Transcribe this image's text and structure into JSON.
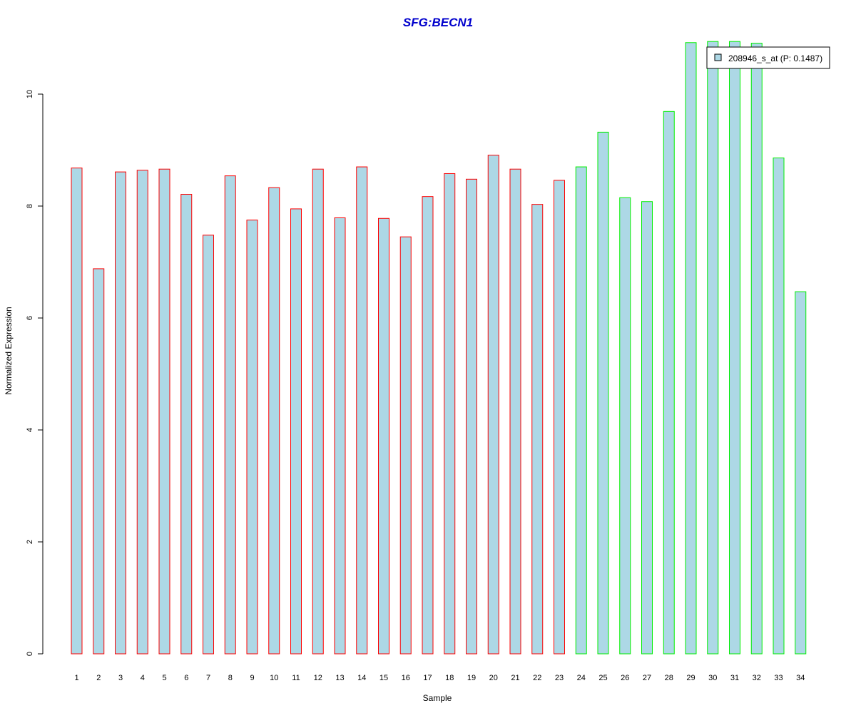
{
  "chart_data": {
    "type": "bar",
    "title": "SFG:BECN1",
    "xlabel": "Sample",
    "ylabel": "Normalized Expression",
    "ylim": [
      0,
      11
    ],
    "yticks": [
      "0",
      "2",
      "4",
      "6",
      "8",
      "10"
    ],
    "categories": [
      "1",
      "2",
      "3",
      "4",
      "5",
      "6",
      "7",
      "8",
      "9",
      "10",
      "11",
      "12",
      "13",
      "14",
      "15",
      "16",
      "17",
      "18",
      "19",
      "20",
      "21",
      "22",
      "23",
      "24",
      "25",
      "26",
      "27",
      "28",
      "29",
      "30",
      "31",
      "32",
      "33",
      "34"
    ],
    "series": [
      {
        "name": "208946_s_at (P: 0.1487)",
        "values": [
          8.68,
          6.88,
          8.61,
          8.64,
          8.66,
          8.21,
          7.48,
          8.54,
          7.75,
          8.33,
          7.95,
          8.66,
          7.79,
          8.7,
          7.78,
          7.45,
          8.17,
          8.58,
          8.48,
          8.91,
          8.66,
          8.03,
          8.46,
          8.7,
          9.32,
          8.15,
          8.08,
          9.69,
          10.92,
          10.94,
          10.94,
          10.91,
          8.86,
          6.47
        ]
      }
    ],
    "group_colors": [
      "#ff0000",
      "#ff0000",
      "#ff0000",
      "#ff0000",
      "#ff0000",
      "#ff0000",
      "#ff0000",
      "#ff0000",
      "#ff0000",
      "#ff0000",
      "#ff0000",
      "#ff0000",
      "#ff0000",
      "#ff0000",
      "#ff0000",
      "#ff0000",
      "#ff0000",
      "#ff0000",
      "#ff0000",
      "#ff0000",
      "#ff0000",
      "#ff0000",
      "#ff0000",
      "#00ee00",
      "#00ee00",
      "#00ee00",
      "#00ee00",
      "#00ee00",
      "#00ee00",
      "#00ee00",
      "#00ee00",
      "#00ee00",
      "#00ee00",
      "#00ee00"
    ],
    "bar_fill": "#add8e6",
    "title_color": "#0000cd",
    "legend": {
      "position": "top-right",
      "label": "208946_s_at (P: 0.1487)"
    },
    "grid": false
  }
}
